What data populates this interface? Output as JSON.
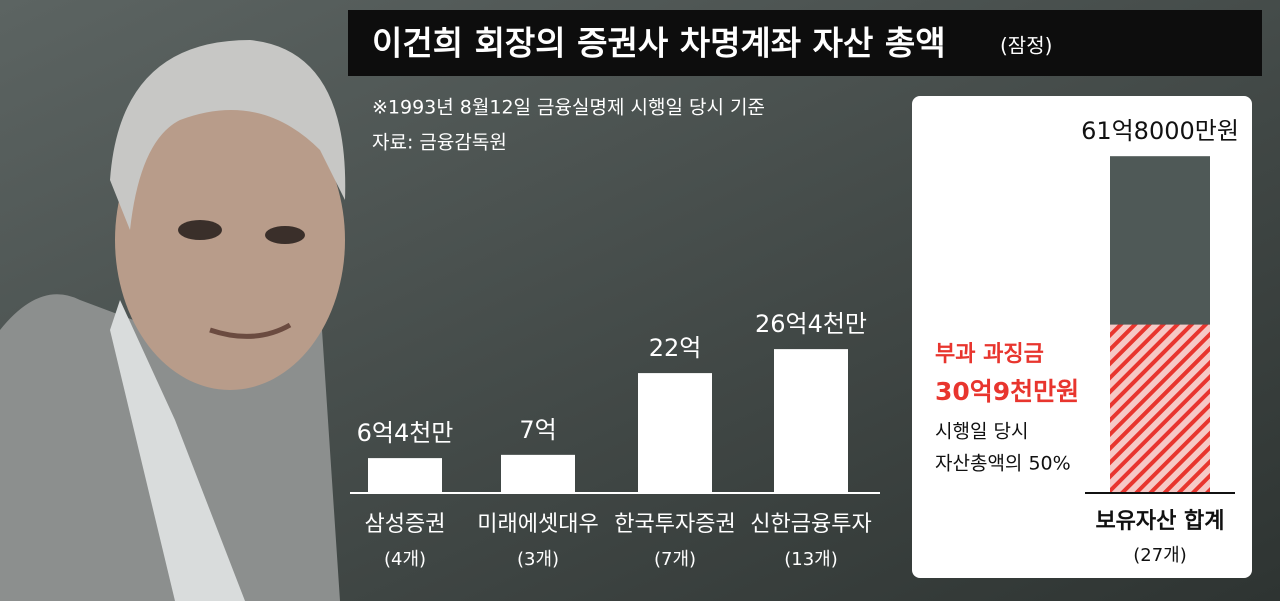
{
  "header": {
    "title": "이건희 회장의 증권사 차명계좌 자산 총액",
    "title_note": "(잠정)",
    "notes": [
      "※1993년 8월12일 금융실명제 시행일 당시 기준",
      "자료: 금융감독원"
    ]
  },
  "chart_data": [
    {
      "type": "bar",
      "categories": [
        "삼성증권",
        "미래에셋대우",
        "한국투자증권",
        "신한금융투자"
      ],
      "category_notes": [
        "(4개)",
        "(3개)",
        "(7개)",
        "(13개)"
      ],
      "values": [
        6.4,
        7,
        22,
        26.4
      ],
      "value_labels": [
        "6억4천만",
        "7억",
        "22억",
        "26억4천만"
      ],
      "color": "#ffffff"
    },
    {
      "type": "bar",
      "categories": [
        "보유자산 합계"
      ],
      "category_notes": [
        "(27개)"
      ],
      "values": [
        61.8
      ],
      "value_labels": [
        "61억8000만원"
      ],
      "color": "#4f5957",
      "highlight": {
        "label": "부과 과징금",
        "value": 30.9,
        "value_label": "30억9천만원",
        "note": [
          "시행일 당시",
          "자산총액의 50%"
        ],
        "color": "#e8352e"
      }
    }
  ]
}
